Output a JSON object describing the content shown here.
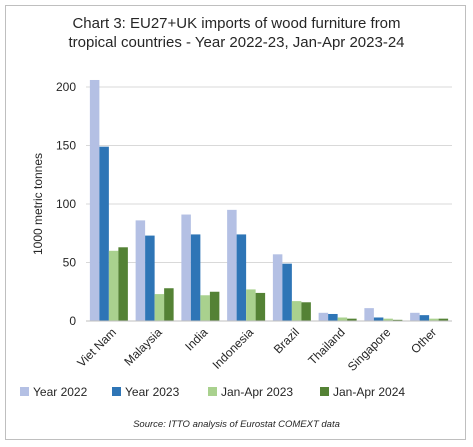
{
  "chart_data": {
    "type": "bar",
    "title_line1": "Chart 3: EU27+UK imports of wood furniture from",
    "title_line2": "tropical countries - Year 2022-23, Jan-Apr 2023-24",
    "ylabel": "1000 metric tonnes",
    "ylim": [
      0,
      200
    ],
    "yticks": [
      0,
      50,
      100,
      150,
      200
    ],
    "grid": true,
    "legend_position": "bottom",
    "categories": [
      "Viet Nam",
      "Malaysia",
      "India",
      "Indonesia",
      "Brazil",
      "Thailand",
      "Singapore",
      "Other"
    ],
    "series": [
      {
        "name": "Year 2022",
        "color": "#b4c0e4",
        "values": [
          206,
          86,
          91,
          95,
          57,
          7,
          11,
          7
        ]
      },
      {
        "name": "Year 2023",
        "color": "#2e75b6",
        "values": [
          149,
          73,
          74,
          74,
          49,
          6,
          3,
          5
        ]
      },
      {
        "name": "Jan-Apr 2023",
        "color": "#a9d18e",
        "values": [
          60,
          23,
          22,
          27,
          17,
          3,
          2,
          2
        ]
      },
      {
        "name": "Jan-Apr 2024",
        "color": "#548235",
        "values": [
          63,
          28,
          25,
          24,
          16,
          2,
          1,
          2
        ]
      }
    ],
    "source": "Source: ITTO analysis of Eurostat COMEXT data"
  }
}
